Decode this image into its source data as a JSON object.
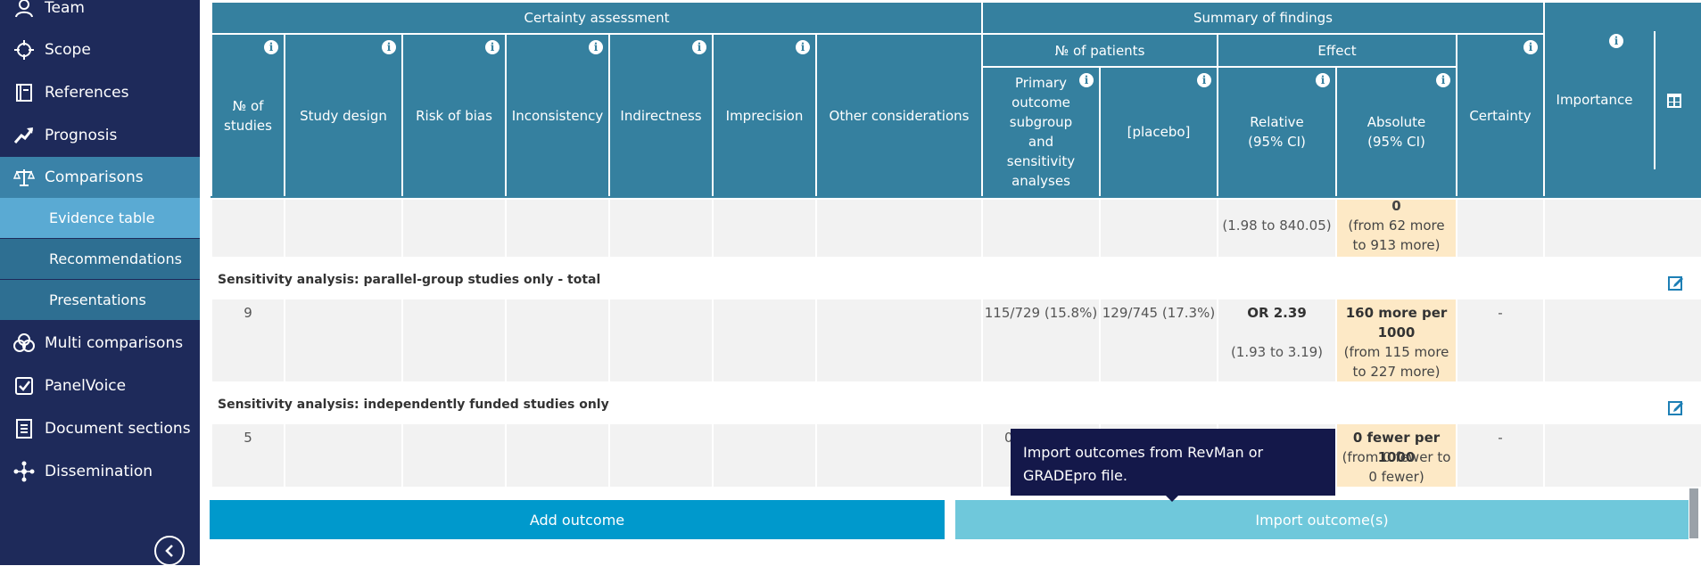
{
  "sidebar": {
    "items": [
      {
        "label": "Team",
        "icon": "team-icon"
      },
      {
        "label": "Scope",
        "icon": "scope-icon"
      },
      {
        "label": "References",
        "icon": "references-icon"
      },
      {
        "label": "Prognosis",
        "icon": "prognosis-icon"
      },
      {
        "label": "Comparisons",
        "icon": "balance-scale-icon"
      },
      {
        "label": "Multi comparisons",
        "icon": "multi-comparisons-icon"
      },
      {
        "label": "PanelVoice",
        "icon": "checkbox-icon"
      },
      {
        "label": "Document sections",
        "icon": "document-icon"
      },
      {
        "label": "Dissemination",
        "icon": "dissemination-icon"
      }
    ],
    "sub_items": [
      {
        "label": "Evidence table"
      },
      {
        "label": "Recommendations"
      },
      {
        "label": "Presentations"
      }
    ]
  },
  "table": {
    "headers": {
      "certainty_assessment": "Certainty assessment",
      "summary_of_findings": "Summary of findings",
      "no_of_studies": "№ of studies",
      "study_design": "Study design",
      "risk_of_bias": "Risk of bias",
      "inconsistency": "Inconsistency",
      "indirectness": "Indirectness",
      "imprecision": "Imprecision",
      "other_considerations": "Other considerations",
      "no_of_patients": "№ of patients",
      "effect": "Effect",
      "certainty": "Certainty",
      "importance": "Importance",
      "primary_outcome": "Primary outcome subgroup and sensitivity analyses",
      "placebo": "[placebo]",
      "relative": "Relative (95% CI)",
      "absolute": "Absolute (95% CI)"
    },
    "row0": {
      "relative": "(1.98 to 840.05)",
      "absolute_top": "0",
      "absolute_detail": "(from 62 more to 913 more)"
    },
    "group1": {
      "title": "Sensitivity analysis: parallel-group studies only - total",
      "studies": "9",
      "primary": "115/729 (15.8%)",
      "placebo": "129/745 (17.3%)",
      "relative_main": "OR 2.39",
      "relative_ci": "(1.93 to 3.19)",
      "absolute_main": "160 more per 1000",
      "absolute_detail": "(from 115 more to 227 more)",
      "certainty": "-"
    },
    "group2": {
      "title": "Sensitivity analysis: independently funded studies only",
      "studies": "5",
      "primary_partial": "0/",
      "absolute_main": "0 fewer per 1000",
      "absolute_detail": "(from 0 fewer to 0 fewer)",
      "certainty": "-"
    }
  },
  "buttons": {
    "add_outcome": "Add outcome",
    "import_outcomes": "Import outcome(s)"
  },
  "tooltip": "Import outcomes from RevMan or GRADEpro file.",
  "colors": {
    "sidebar_bg": "#1e2a5a",
    "header_bg": "#35809f",
    "absolute_bg": "#fde9c6",
    "add_button": "#0099cc",
    "import_button": "#6fc8db",
    "tooltip_bg": "#14184a"
  }
}
